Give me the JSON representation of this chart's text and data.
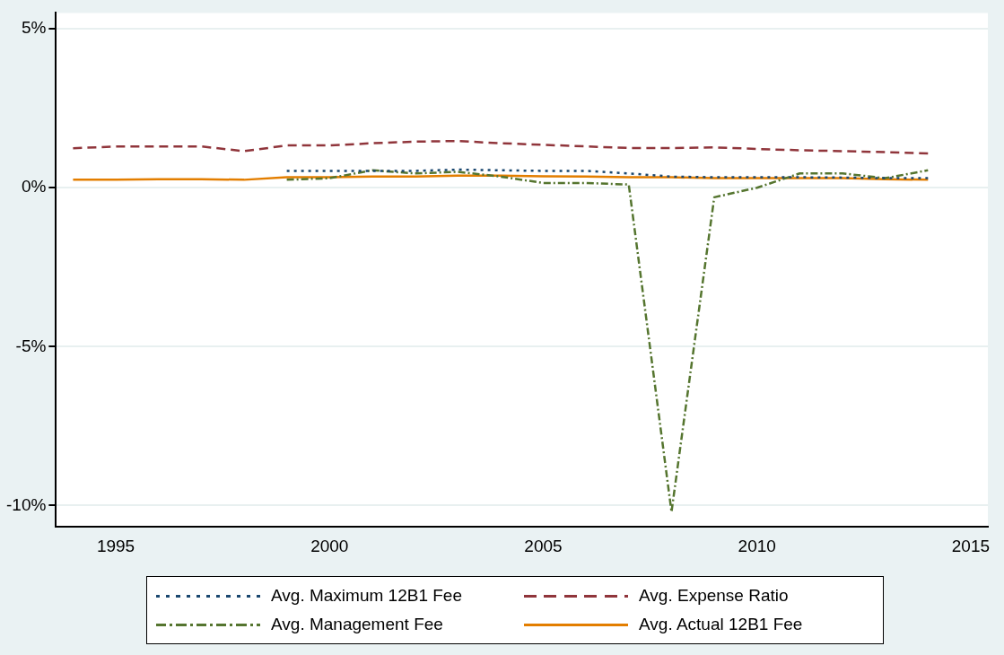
{
  "chart_data": {
    "type": "line",
    "x": [
      1994,
      1995,
      1996,
      1997,
      1998,
      1999,
      2000,
      2001,
      2002,
      2003,
      2004,
      2005,
      2006,
      2007,
      2008,
      2009,
      2010,
      2011,
      2012,
      2013,
      2014
    ],
    "series": [
      {
        "name": "Avg. Maximum 12B1 Fee",
        "color": "#1a476f",
        "line_style": "dotted",
        "values": [
          null,
          null,
          null,
          null,
          null,
          0.53,
          0.53,
          0.53,
          0.53,
          0.57,
          0.55,
          0.53,
          0.53,
          0.45,
          0.35,
          0.33,
          0.33,
          0.33,
          0.32,
          0.3,
          0.3
        ]
      },
      {
        "name": "Avg. Expense Ratio",
        "color": "#90353b",
        "line_style": "dashed",
        "values": [
          1.24,
          1.3,
          1.3,
          1.3,
          1.15,
          1.33,
          1.33,
          1.4,
          1.45,
          1.47,
          1.4,
          1.35,
          1.3,
          1.25,
          1.25,
          1.27,
          1.22,
          1.18,
          1.15,
          1.12,
          1.08
        ]
      },
      {
        "name": "Avg. Management Fee",
        "color": "#55752f",
        "line_style": "dashdot",
        "values": [
          null,
          null,
          null,
          null,
          null,
          0.25,
          0.3,
          0.55,
          0.45,
          0.5,
          0.35,
          0.15,
          0.15,
          0.1,
          -10.2,
          -0.3,
          0,
          0.45,
          0.45,
          0.3,
          0.55
        ]
      },
      {
        "name": "Avg. Actual 12B1 Fee",
        "color": "#e37e00",
        "line_style": "solid",
        "values": [
          0.25,
          0.25,
          0.27,
          0.27,
          0.25,
          0.33,
          0.33,
          0.35,
          0.35,
          0.38,
          0.38,
          0.36,
          0.35,
          0.33,
          0.33,
          0.3,
          0.3,
          0.3,
          0.3,
          0.27,
          0.25
        ]
      }
    ],
    "xlim": [
      1993.6,
      2015.4
    ],
    "xticks": [
      1995,
      2000,
      2005,
      2010,
      2015
    ],
    "ylim": [
      -10.67,
      5.5
    ],
    "yticks": [
      {
        "value": -10,
        "label": "-10%"
      },
      {
        "value": -5,
        "label": "-5%"
      },
      {
        "value": 0,
        "label": "0%"
      },
      {
        "value": 5,
        "label": "5%"
      }
    ],
    "grid": "y",
    "legend": "bottom",
    "marker": "none"
  }
}
